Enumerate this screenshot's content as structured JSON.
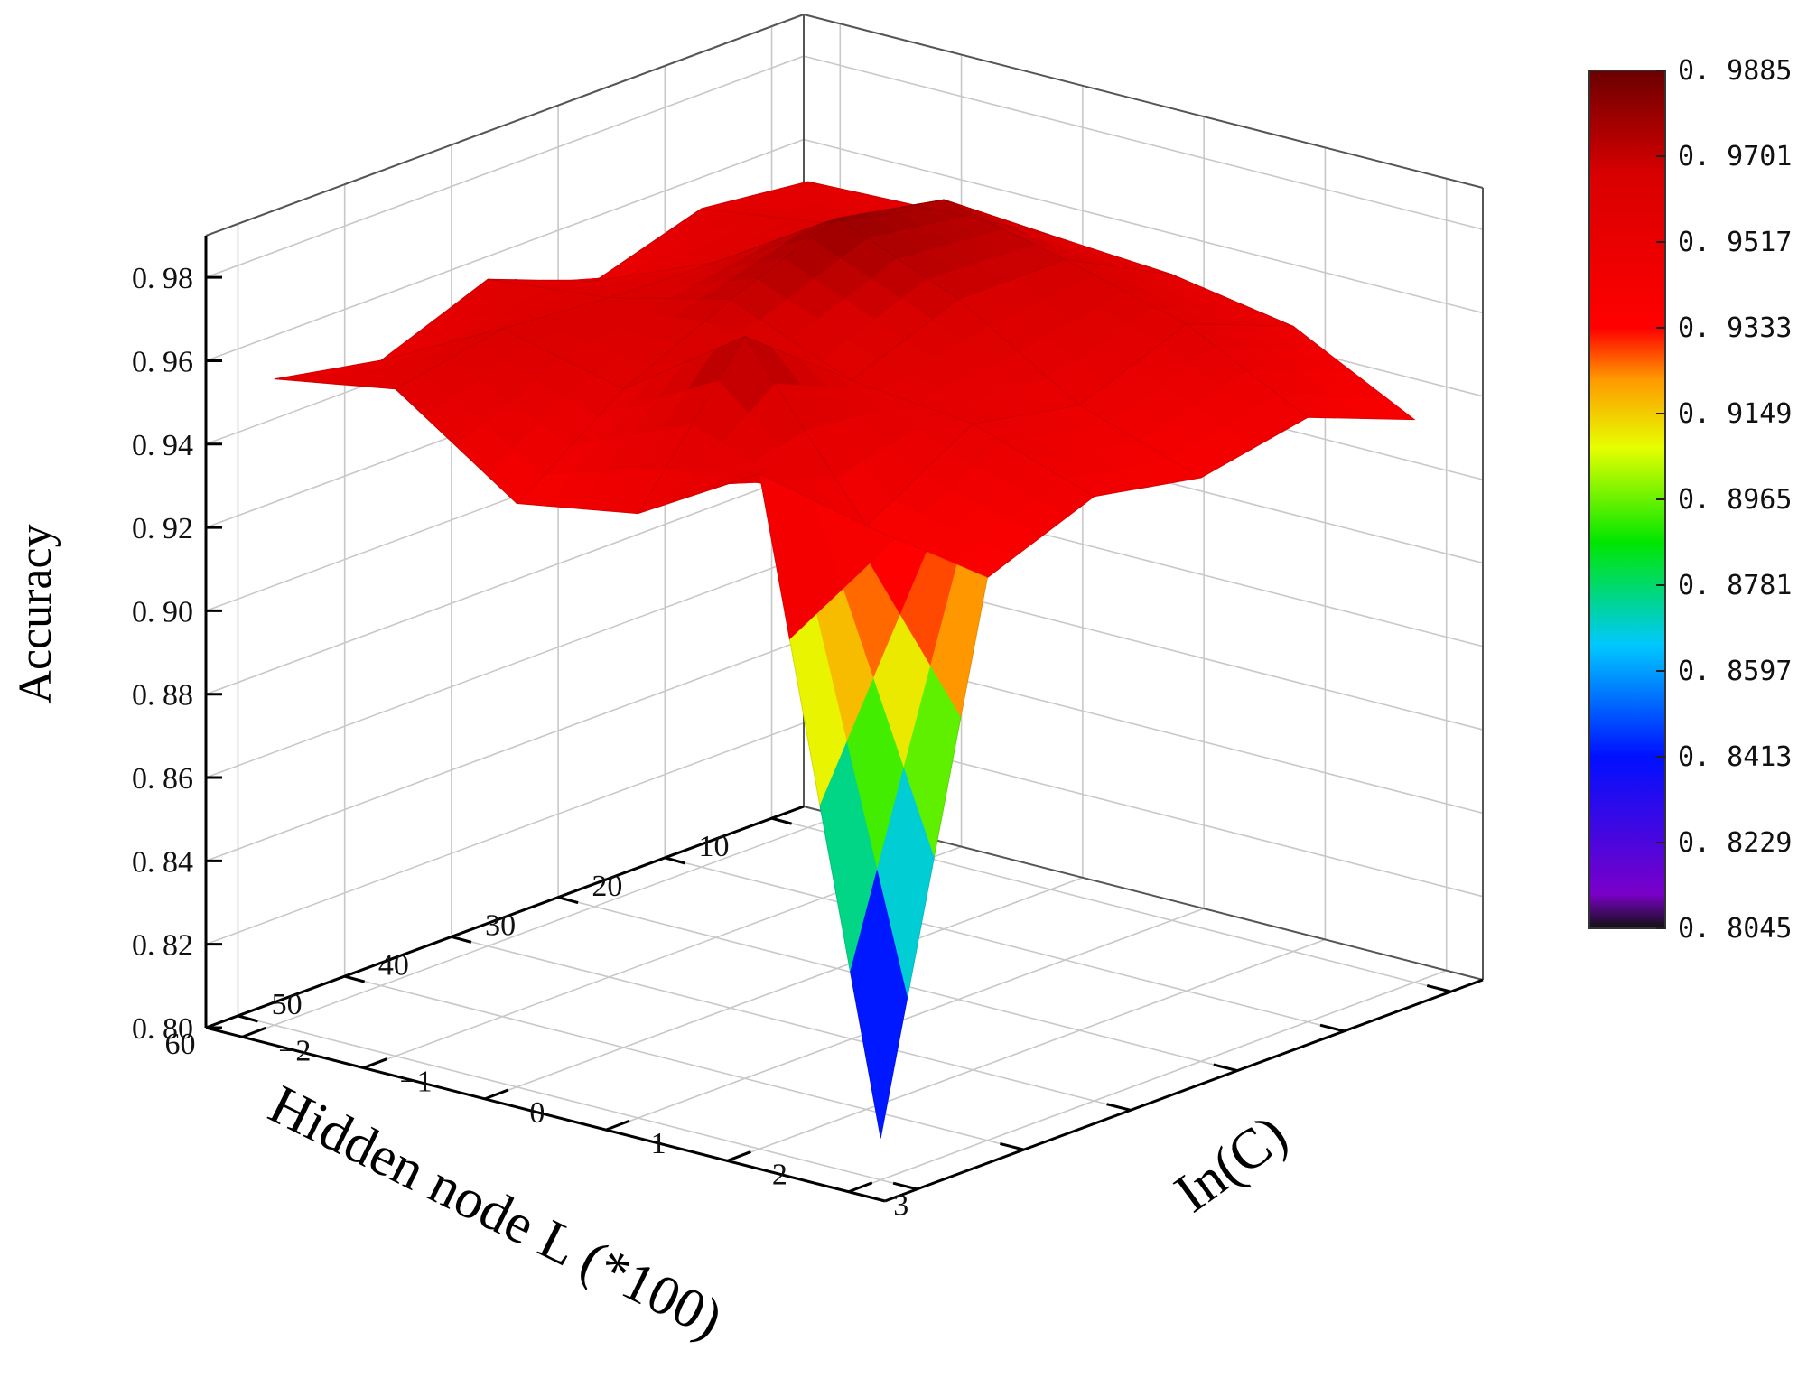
{
  "chart_data": {
    "type": "surface3d",
    "x_axis": {
      "label": "Hidden node L (*100)",
      "ticks": [
        10,
        20,
        30,
        40,
        50,
        60
      ],
      "range": [
        7,
        63
      ]
    },
    "y_axis": {
      "label": "In(C)",
      "ticks": [
        -2,
        -1,
        0,
        1,
        2,
        3
      ],
      "range": [
        -2.3,
        3.3
      ]
    },
    "z_axis": {
      "label": "Accuracy",
      "ticks": [
        "0.80",
        "0.82",
        "0.84",
        "0.86",
        "0.88",
        "0.90",
        "0.92",
        "0.94",
        "0.96",
        "0.98"
      ],
      "range": [
        0.8,
        0.99
      ]
    },
    "x": [
      10,
      20,
      30,
      40,
      50,
      60
    ],
    "y": [
      -2,
      -1,
      0,
      1,
      2,
      3
    ],
    "z": [
      [
        0.955,
        0.956,
        0.957,
        0.955,
        0.95,
        0.935
      ],
      [
        0.958,
        0.962,
        0.975,
        0.968,
        0.96,
        0.945
      ],
      [
        0.95,
        0.962,
        0.98,
        0.968,
        0.95,
        0.94
      ],
      [
        0.96,
        0.963,
        0.97,
        0.958,
        0.955,
        0.945
      ],
      [
        0.95,
        0.965,
        0.958,
        0.978,
        0.94,
        0.935
      ],
      [
        0.955,
        0.96,
        0.94,
        0.945,
        0.962,
        0.81
      ]
    ],
    "colorbar": {
      "ticks": [
        "0.9885",
        "0.9701",
        "0.9517",
        "0.9333",
        "0.9149",
        "0.8965",
        "0.8781",
        "0.8597",
        "0.8413",
        "0.8229",
        "0.8045"
      ],
      "range": [
        0.8045,
        0.9885
      ],
      "colors": [
        "#111111",
        "#7a00c8",
        "#0010ff",
        "#00c8ff",
        "#00e600",
        "#ffff00",
        "#ff9900",
        "#ff0000",
        "#cc0000",
        "#6a0000"
      ]
    },
    "grid": true,
    "legend": "right"
  }
}
